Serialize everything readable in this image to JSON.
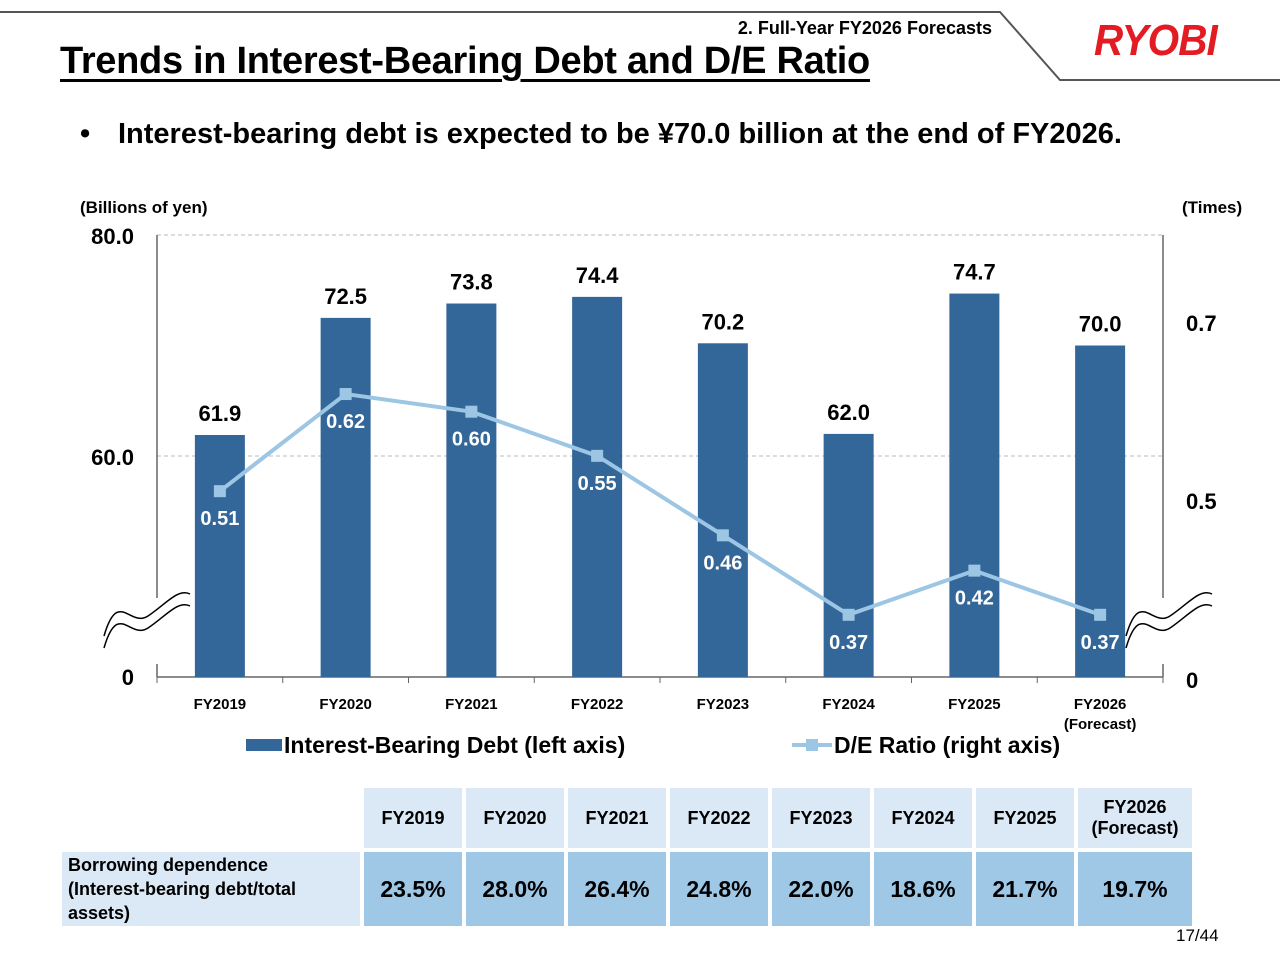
{
  "header": {
    "section": "2. Full-Year FY2026 Forecasts",
    "title": "Trends in Interest-Bearing Debt and D/E Ratio",
    "logo": "RYOBI"
  },
  "bullet": "Interest-bearing debt is expected to be ¥70.0 billion at the end of FY2026.",
  "colors": {
    "bar": "#336699",
    "line": "#9dc6e4",
    "logo": "#e31b23",
    "table_head": "#dbe8f5",
    "table_value": "#9fc8e6"
  },
  "chart_data": {
    "type": "bar+line",
    "categories": [
      "FY2019",
      "FY2020",
      "FY2021",
      "FY2022",
      "FY2023",
      "FY2024",
      "FY2025",
      "FY2026"
    ],
    "category_sublabels": [
      "",
      "",
      "",
      "",
      "",
      "",
      "",
      "(Forecast)"
    ],
    "series": [
      {
        "name": "Interest-Bearing Debt (left axis)",
        "type": "bar",
        "axis": "left",
        "values": [
          61.9,
          72.5,
          73.8,
          74.4,
          70.2,
          62.0,
          74.7,
          70.0
        ],
        "labels": [
          "61.9",
          "72.5",
          "73.8",
          "74.4",
          "70.2",
          "62.0",
          "74.7",
          "70.0"
        ]
      },
      {
        "name": "D/E Ratio (right axis)",
        "type": "line",
        "axis": "right",
        "values": [
          0.51,
          0.62,
          0.6,
          0.55,
          0.46,
          0.37,
          0.42,
          0.37
        ],
        "labels": [
          "0.51",
          "0.62",
          "0.60",
          "0.55",
          "0.46",
          "0.37",
          "0.42",
          "0.37"
        ]
      }
    ],
    "left_axis": {
      "label": "(Billions of yen)",
      "ticks": [
        "0",
        "60.0",
        "80.0"
      ],
      "break_range": [
        0,
        40
      ],
      "range": [
        40,
        80
      ]
    },
    "right_axis": {
      "label": "(Times)",
      "ticks": [
        "0",
        "0.5",
        "0.7"
      ],
      "break_range": [
        0,
        0.3
      ],
      "range": [
        0.3,
        0.8
      ]
    }
  },
  "legend": {
    "bar": "Interest-Bearing Debt (left axis)",
    "line": "D/E Ratio (right axis)"
  },
  "table": {
    "headers": [
      "FY2019",
      "FY2020",
      "FY2021",
      "FY2022",
      "FY2023",
      "FY2024",
      "FY2025",
      "FY2026"
    ],
    "last_header_sub": "(Forecast)",
    "row_label_1": "Borrowing dependence",
    "row_label_2": "(Interest-bearing debt/total",
    "row_label_3": "assets)",
    "values": [
      "23.5%",
      "28.0%",
      "26.4%",
      "24.8%",
      "22.0%",
      "18.6%",
      "21.7%",
      "19.7%"
    ]
  },
  "page": "17/44"
}
